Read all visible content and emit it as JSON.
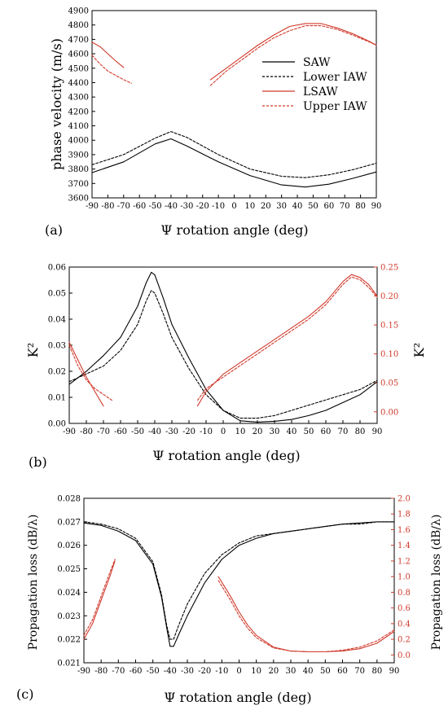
{
  "colors": {
    "black": "#000000",
    "red": "#d0392b"
  },
  "chart_data": [
    {
      "type": "line",
      "panel_label": "(a)",
      "xlabel": "Ψ rotation angle (deg)",
      "ylabel": "phase velocity (m/s)",
      "xlim": [
        -90,
        90
      ],
      "ylim": [
        3600,
        4900
      ],
      "xticks": [
        -90,
        -80,
        -70,
        -60,
        -50,
        -40,
        -30,
        -20,
        -10,
        0,
        10,
        20,
        30,
        40,
        50,
        60,
        70,
        80,
        90
      ],
      "yticks": [
        3600,
        3700,
        3800,
        3900,
        4000,
        4100,
        4200,
        4300,
        4400,
        4500,
        4600,
        4700,
        4800,
        4900
      ],
      "legend_position": "right",
      "series": [
        {
          "name": "SAW",
          "color": "#000000",
          "dash": "solid",
          "x": [
            -90,
            -70,
            -50,
            -40,
            -30,
            -10,
            10,
            30,
            45,
            60,
            75,
            90
          ],
          "y": [
            3775,
            3850,
            3975,
            4010,
            3960,
            3850,
            3755,
            3690,
            3675,
            3695,
            3735,
            3780
          ]
        },
        {
          "name": "Lower IAW",
          "color": "#000000",
          "dash": "dashed",
          "x": [
            -90,
            -70,
            -50,
            -40,
            -30,
            -10,
            10,
            30,
            45,
            60,
            75,
            90
          ],
          "y": [
            3830,
            3900,
            4015,
            4060,
            4020,
            3900,
            3800,
            3750,
            3740,
            3760,
            3795,
            3840
          ]
        },
        {
          "name": "LSAW",
          "color": "#d0392b",
          "dash": "solid",
          "segments": [
            {
              "x": [
                -90,
                -85,
                -80,
                -75,
                -70
              ],
              "y": [
                4680,
                4650,
                4600,
                4550,
                4505
              ]
            },
            {
              "x": [
                -15,
                -5,
                5,
                15,
                25,
                35,
                45,
                55,
                65,
                75,
                85,
                90
              ],
              "y": [
                4420,
                4500,
                4580,
                4660,
                4730,
                4790,
                4810,
                4810,
                4780,
                4740,
                4690,
                4660
              ]
            }
          ]
        },
        {
          "name": "Upper IAW",
          "color": "#d0392b",
          "dash": "dashed",
          "segments": [
            {
              "x": [
                -90,
                -85,
                -80,
                -75,
                -70,
                -65
              ],
              "y": [
                4590,
                4530,
                4480,
                4450,
                4420,
                4395
              ]
            },
            {
              "x": [
                -15,
                -5,
                5,
                15,
                25,
                35,
                45,
                55,
                65,
                75,
                85,
                90
              ],
              "y": [
                4380,
                4480,
                4560,
                4640,
                4710,
                4760,
                4795,
                4795,
                4770,
                4730,
                4685,
                4660
              ]
            }
          ]
        }
      ]
    },
    {
      "type": "line",
      "panel_label": "(b)",
      "xlabel": "Ψ rotation angle (deg)",
      "ylabel": "K²",
      "ylabel_right": "K²",
      "xlim": [
        -90,
        90
      ],
      "ylim": [
        0,
        0.06
      ],
      "ylim_right": [
        -0.02,
        0.25
      ],
      "xticks": [
        -90,
        -80,
        -70,
        -60,
        -50,
        -40,
        -30,
        -20,
        -10,
        0,
        10,
        20,
        30,
        40,
        50,
        60,
        70,
        80,
        90
      ],
      "yticks": [
        "0.00",
        "0.01",
        "0.02",
        "0.03",
        "0.04",
        "0.05",
        "0.06"
      ],
      "yticks_right": [
        "0.00",
        "0.05",
        "0.10",
        "0.15",
        "0.20",
        "0.25"
      ],
      "series": [
        {
          "name": "SAW K²",
          "color": "#000000",
          "dash": "solid",
          "axis": "left",
          "x": [
            -90,
            -80,
            -70,
            -60,
            -50,
            -45,
            -42,
            -40,
            -35,
            -30,
            -20,
            -10,
            0,
            10,
            20,
            30,
            40,
            50,
            60,
            70,
            80,
            90
          ],
          "y": [
            0.015,
            0.02,
            0.026,
            0.033,
            0.045,
            0.054,
            0.058,
            0.057,
            0.048,
            0.038,
            0.025,
            0.013,
            0.005,
            0.001,
            0.0005,
            0.0008,
            0.0015,
            0.003,
            0.005,
            0.008,
            0.011,
            0.016
          ]
        },
        {
          "name": "Lower IAW K²",
          "color": "#000000",
          "dash": "dashed",
          "axis": "left",
          "x": [
            -90,
            -80,
            -70,
            -60,
            -50,
            -45,
            -42,
            -40,
            -35,
            -30,
            -20,
            -10,
            0,
            10,
            20,
            30,
            40,
            50,
            60,
            70,
            80,
            90
          ],
          "y": [
            0.016,
            0.019,
            0.022,
            0.028,
            0.038,
            0.047,
            0.051,
            0.05,
            0.042,
            0.033,
            0.021,
            0.011,
            0.005,
            0.002,
            0.002,
            0.003,
            0.005,
            0.007,
            0.009,
            0.011,
            0.013,
            0.0165
          ]
        },
        {
          "name": "LSAW K²",
          "color": "#d0392b",
          "dash": "solid",
          "axis": "right",
          "segments": [
            {
              "x": [
                -90,
                -85,
                -80,
                -75,
                -70
              ],
              "y": [
                0.12,
                0.09,
                0.06,
                0.035,
                0.01
              ]
            },
            {
              "x": [
                -15,
                -10,
                0,
                10,
                20,
                30,
                40,
                50,
                60,
                70,
                75,
                80,
                85,
                90
              ],
              "y": [
                0.01,
                0.035,
                0.065,
                0.085,
                0.105,
                0.125,
                0.145,
                0.165,
                0.19,
                0.225,
                0.237,
                0.232,
                0.22,
                0.2
              ]
            }
          ]
        },
        {
          "name": "Upper IAW K²",
          "color": "#d0392b",
          "dash": "dashed",
          "axis": "right",
          "segments": [
            {
              "x": [
                -90,
                -85,
                -80,
                -75,
                -70,
                -65
              ],
              "y": [
                0.115,
                0.08,
                0.055,
                0.04,
                0.03,
                0.02
              ]
            },
            {
              "x": [
                -15,
                -10,
                0,
                10,
                20,
                30,
                40,
                50,
                60,
                70,
                75,
                80,
                85,
                90
              ],
              "y": [
                0.02,
                0.04,
                0.06,
                0.08,
                0.1,
                0.12,
                0.14,
                0.16,
                0.185,
                0.22,
                0.233,
                0.228,
                0.215,
                0.198
              ]
            }
          ]
        }
      ]
    },
    {
      "type": "line",
      "panel_label": "(c)",
      "xlabel": "Ψ rotation angle (deg)",
      "ylabel": "Propagation loss (dB/λ)",
      "ylabel_right": "Propagation loss (dB/λ)",
      "xlim": [
        -90,
        90
      ],
      "ylim": [
        0.021,
        0.028
      ],
      "ylim_right": [
        -0.1,
        2.0
      ],
      "xticks": [
        -90,
        -80,
        -70,
        -60,
        -50,
        -40,
        -30,
        -20,
        -10,
        0,
        10,
        20,
        30,
        40,
        50,
        60,
        70,
        80,
        90
      ],
      "yticks": [
        "0.021",
        "0.022",
        "0.023",
        "0.024",
        "0.025",
        "0.026",
        "0.027",
        "0.028"
      ],
      "yticks_right": [
        "0.0",
        "0.2",
        "0.4",
        "0.6",
        "0.8",
        "1.0",
        "1.2",
        "1.4",
        "1.6",
        "1.8",
        "2.0"
      ],
      "series": [
        {
          "name": "SAW loss",
          "color": "#000000",
          "dash": "solid",
          "axis": "left",
          "x": [
            -90,
            -80,
            -70,
            -60,
            -50,
            -45,
            -42,
            -40,
            -38,
            -35,
            -30,
            -20,
            -10,
            0,
            10,
            20,
            30,
            40,
            50,
            60,
            70,
            80,
            90
          ],
          "y": [
            0.02695,
            0.02685,
            0.0266,
            0.0262,
            0.0252,
            0.0238,
            0.0225,
            0.0217,
            0.0217,
            0.0222,
            0.023,
            0.0244,
            0.0254,
            0.026,
            0.0263,
            0.0265,
            0.0266,
            0.0267,
            0.0268,
            0.0269,
            0.02695,
            0.027,
            0.027
          ]
        },
        {
          "name": "Lower IAW loss",
          "color": "#000000",
          "dash": "dashed",
          "axis": "left",
          "x": [
            -90,
            -80,
            -70,
            -60,
            -50,
            -45,
            -42,
            -40,
            -38,
            -35,
            -30,
            -20,
            -10,
            0,
            10,
            20,
            30,
            40,
            50,
            60,
            70,
            80,
            90
          ],
          "y": [
            0.027,
            0.0269,
            0.0267,
            0.0263,
            0.0253,
            0.0239,
            0.0226,
            0.022,
            0.022,
            0.0226,
            0.0235,
            0.0248,
            0.0256,
            0.0261,
            0.0264,
            0.0265,
            0.0266,
            0.0267,
            0.0268,
            0.0269,
            0.0269,
            0.027,
            0.027
          ]
        },
        {
          "name": "LSAW loss",
          "color": "#d0392b",
          "dash": "solid",
          "axis": "right",
          "segments": [
            {
              "x": [
                -90,
                -85,
                -80,
                -75,
                -72
              ],
              "y": [
                0.2,
                0.4,
                0.7,
                1.0,
                1.2
              ]
            },
            {
              "x": [
                -12,
                -5,
                0,
                5,
                10,
                20,
                30,
                40,
                50,
                60,
                70,
                80,
                90
              ],
              "y": [
                1.0,
                0.75,
                0.55,
                0.38,
                0.25,
                0.1,
                0.05,
                0.04,
                0.04,
                0.05,
                0.08,
                0.15,
                0.3
              ]
            }
          ]
        },
        {
          "name": "Upper IAW loss",
          "color": "#d0392b",
          "dash": "dashed",
          "axis": "right",
          "segments": [
            {
              "x": [
                -90,
                -85,
                -80,
                -75,
                -72
              ],
              "y": [
                0.25,
                0.45,
                0.75,
                1.05,
                1.22
              ]
            },
            {
              "x": [
                -12,
                -5,
                0,
                5,
                10,
                20,
                30,
                40,
                50,
                60,
                70,
                80,
                90
              ],
              "y": [
                0.95,
                0.7,
                0.5,
                0.34,
                0.22,
                0.09,
                0.05,
                0.04,
                0.04,
                0.06,
                0.1,
                0.18,
                0.32
              ]
            }
          ]
        }
      ]
    }
  ]
}
